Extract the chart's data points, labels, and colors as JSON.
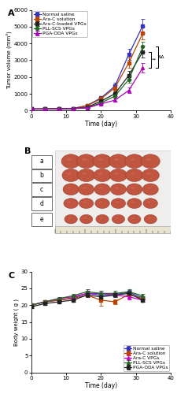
{
  "panel_A": {
    "xlabel": "Time (day)",
    "ylabel": "Tumor volume (mm³)",
    "xlim": [
      0,
      40
    ],
    "ylim": [
      0,
      6000
    ],
    "yticks": [
      0,
      1000,
      2000,
      3000,
      4000,
      5000,
      6000
    ],
    "xticks": [
      0,
      10,
      20,
      30,
      40
    ],
    "series": [
      {
        "label": "Normal saline",
        "color": "#3333bb",
        "marker": "s",
        "x": [
          0,
          4,
          8,
          12,
          16,
          20,
          24,
          28,
          32
        ],
        "y": [
          90,
          100,
          110,
          130,
          300,
          750,
          1450,
          3350,
          5050
        ],
        "yerr": [
          8,
          10,
          12,
          18,
          45,
          90,
          190,
          320,
          420
        ]
      },
      {
        "label": "Ara-C solution",
        "color": "#bb4400",
        "marker": "s",
        "x": [
          0,
          4,
          8,
          12,
          16,
          20,
          24,
          28,
          32
        ],
        "y": [
          90,
          100,
          110,
          128,
          280,
          700,
          1350,
          2850,
          4600
        ],
        "yerr": [
          8,
          10,
          12,
          18,
          40,
          85,
          170,
          290,
          380
        ]
      },
      {
        "label": "Ara-C-loaded VPGs",
        "color": "#222222",
        "marker": "s",
        "x": [
          0,
          4,
          8,
          12,
          16,
          20,
          24,
          28,
          32
        ],
        "y": [
          90,
          95,
          105,
          125,
          195,
          560,
          1000,
          2100,
          3500
        ],
        "yerr": [
          8,
          10,
          10,
          15,
          35,
          75,
          140,
          240,
          360
        ]
      },
      {
        "label": "PLL-SCS VPGs",
        "color": "#226622",
        "marker": "o",
        "x": [
          0,
          4,
          8,
          12,
          16,
          20,
          24,
          28,
          32
        ],
        "y": [
          90,
          95,
          100,
          120,
          170,
          460,
          860,
          1850,
          3800
        ],
        "yerr": [
          8,
          9,
          10,
          14,
          30,
          65,
          120,
          210,
          310
        ]
      },
      {
        "label": "PGA-ODA VPGs",
        "color": "#aa00bb",
        "marker": "^",
        "x": [
          0,
          4,
          8,
          12,
          16,
          20,
          24,
          28,
          32
        ],
        "y": [
          90,
          90,
          95,
          115,
          150,
          400,
          620,
          1200,
          2550
        ],
        "yerr": [
          8,
          9,
          10,
          13,
          28,
          55,
          95,
          170,
          270
        ]
      }
    ]
  },
  "panel_C": {
    "xlabel": "Time (day)",
    "ylabel": "Body weight ( g )",
    "xlim": [
      0,
      40
    ],
    "ylim": [
      0,
      30
    ],
    "yticks": [
      0,
      5,
      10,
      15,
      20,
      25,
      30
    ],
    "xticks": [
      0,
      10,
      20,
      30,
      40
    ],
    "series": [
      {
        "label": "Normal saline",
        "color": "#3333bb",
        "marker": "s",
        "x": [
          0,
          4,
          8,
          12,
          16,
          20,
          24,
          28,
          32
        ],
        "y": [
          20.0,
          21.0,
          21.5,
          22.2,
          23.5,
          23.0,
          23.2,
          23.8,
          22.2
        ],
        "yerr": [
          0.3,
          0.4,
          0.5,
          0.6,
          0.7,
          0.8,
          0.6,
          0.7,
          0.5
        ]
      },
      {
        "label": "Ara-C solution",
        "color": "#bb4400",
        "marker": "s",
        "x": [
          0,
          4,
          8,
          12,
          16,
          20,
          24,
          28,
          32
        ],
        "y": [
          20.0,
          21.0,
          21.5,
          22.0,
          23.0,
          21.5,
          21.0,
          23.2,
          22.0
        ],
        "yerr": [
          0.3,
          0.4,
          0.5,
          0.6,
          0.7,
          1.6,
          0.6,
          0.7,
          0.5
        ]
      },
      {
        "label": "Ara-C VPGs",
        "color": "#cc00cc",
        "marker": "^",
        "x": [
          0,
          4,
          8,
          12,
          16,
          20,
          24,
          28,
          32
        ],
        "y": [
          20.0,
          21.0,
          22.0,
          22.5,
          23.5,
          23.5,
          23.0,
          22.5,
          21.5
        ],
        "yerr": [
          0.3,
          0.4,
          0.5,
          0.6,
          0.7,
          0.8,
          0.6,
          0.7,
          0.5
        ]
      },
      {
        "label": "PLL-SCS VPGs",
        "color": "#226622",
        "marker": "^",
        "x": [
          0,
          4,
          8,
          12,
          16,
          20,
          24,
          28,
          32
        ],
        "y": [
          20.0,
          21.0,
          22.0,
          22.8,
          24.0,
          23.5,
          23.5,
          24.0,
          22.8
        ],
        "yerr": [
          0.3,
          0.4,
          0.5,
          0.6,
          0.7,
          0.8,
          0.7,
          0.8,
          0.6
        ]
      },
      {
        "label": "PGA-ODA VPGs",
        "color": "#222222",
        "marker": "s",
        "x": [
          0,
          4,
          8,
          12,
          16,
          20,
          24,
          28,
          32
        ],
        "y": [
          19.5,
          20.5,
          21.0,
          21.5,
          23.0,
          22.5,
          23.0,
          23.5,
          21.5
        ],
        "yerr": [
          0.3,
          0.4,
          0.5,
          0.5,
          0.6,
          0.7,
          0.6,
          0.7,
          0.5
        ]
      }
    ]
  },
  "panel_B_labels": [
    "a",
    "b",
    "c",
    "d",
    "e"
  ],
  "photo_bg": "#f0eeec",
  "photo_border": "#cccccc",
  "tumor_color": "#c05540",
  "tumor_highlight": "#d87060",
  "ruler_color": "#e8e4d0",
  "background_color": "#ffffff"
}
